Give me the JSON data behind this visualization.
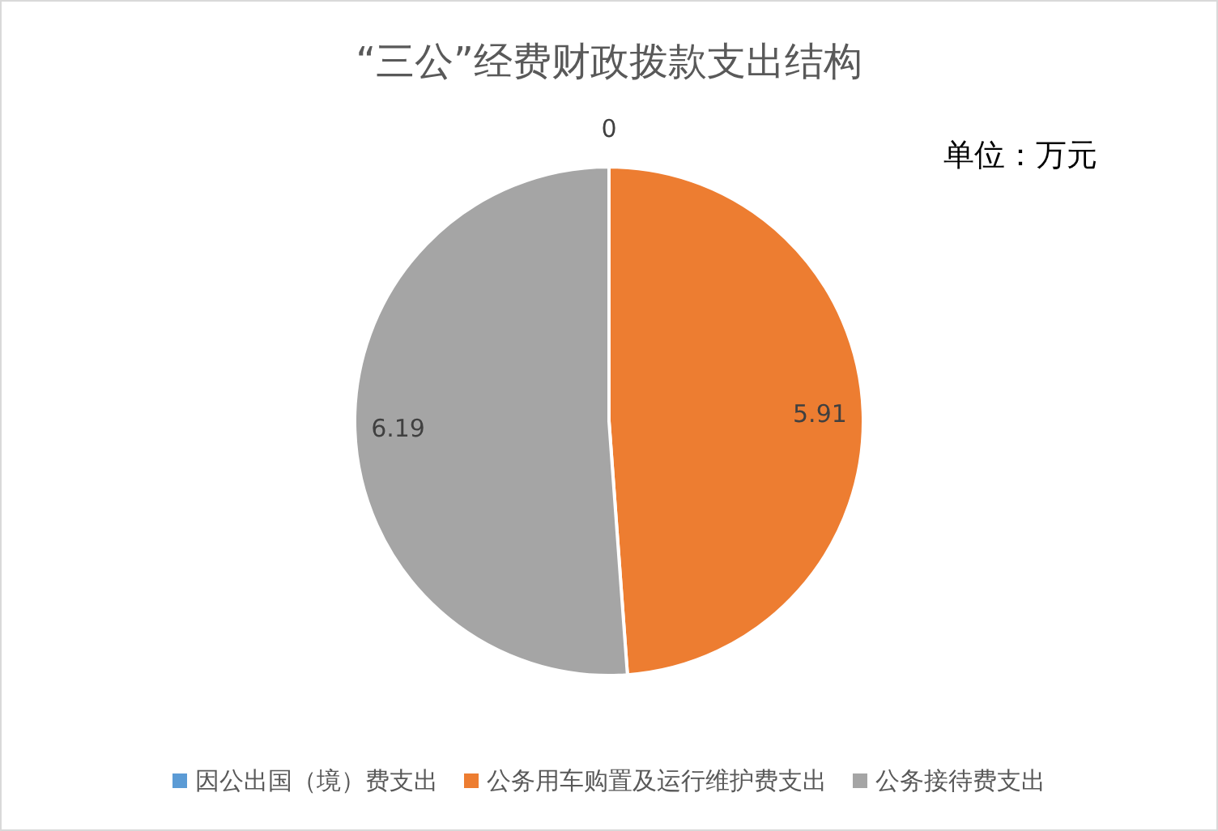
{
  "chart_data": {
    "type": "pie",
    "title": "“三公”经费财政拨款支出结构",
    "annotations": [
      "单位：万元"
    ],
    "categories": [
      "因公出国（境）费支出",
      "公务用车购置及运行维护费支出",
      "公务接待费支出"
    ],
    "values": [
      0,
      5.91,
      6.19
    ],
    "value_labels": [
      "0",
      "5.91",
      "6.19"
    ],
    "colors": [
      "#5b9bd5",
      "#ed7d31",
      "#a5a5a5"
    ],
    "legend": "bottom"
  }
}
